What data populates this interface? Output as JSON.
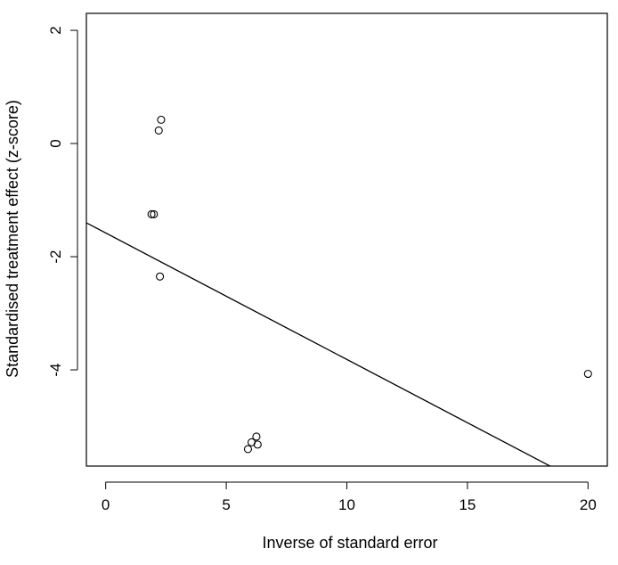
{
  "chart_data": {
    "type": "scatter",
    "title": "",
    "xlabel": "Inverse of standard error",
    "ylabel": "Standardised treatment effect (z-score)",
    "xlim": [
      -0.8,
      20.8
    ],
    "ylim": [
      -5.7,
      2.3
    ],
    "x_ticks": [
      0,
      5,
      10,
      15,
      20
    ],
    "y_ticks": [
      2,
      0,
      -2,
      -4
    ],
    "grid": false,
    "points": [
      {
        "x": 2.3,
        "y": 0.42
      },
      {
        "x": 2.2,
        "y": 0.23
      },
      {
        "x": 1.9,
        "y": -1.25
      },
      {
        "x": 2.0,
        "y": -1.25
      },
      {
        "x": 2.25,
        "y": -2.35
      },
      {
        "x": 6.25,
        "y": -5.18
      },
      {
        "x": 6.05,
        "y": -5.28
      },
      {
        "x": 6.3,
        "y": -5.32
      },
      {
        "x": 5.9,
        "y": -5.4
      },
      {
        "x": 20.0,
        "y": -4.07
      }
    ],
    "regression_line": {
      "intercept": -1.58,
      "slope": -0.2236
    }
  }
}
